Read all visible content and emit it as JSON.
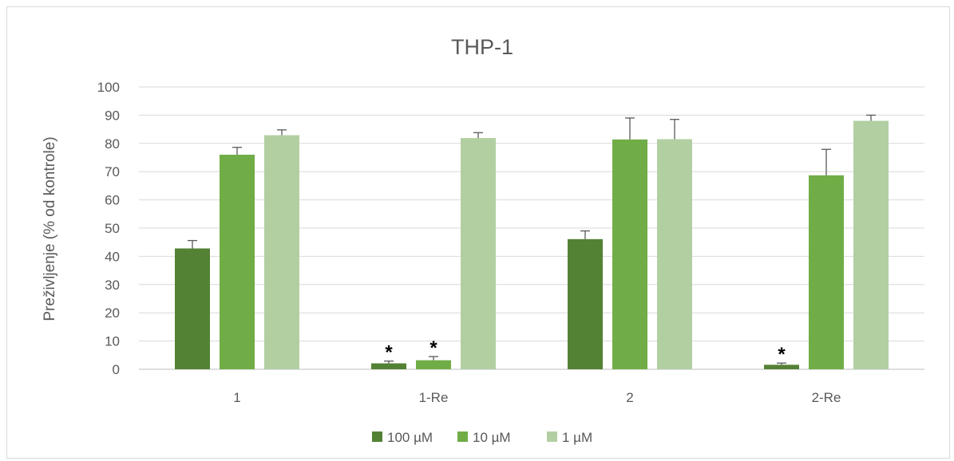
{
  "chart_data": {
    "type": "bar",
    "title": "THP-1",
    "xlabel": "",
    "ylabel": "Preživljenje (% od kontrole)",
    "ylim": [
      0,
      100
    ],
    "yticks": [
      0,
      10,
      20,
      30,
      40,
      50,
      60,
      70,
      80,
      90,
      100
    ],
    "categories": [
      "1",
      "1-Re",
      "2",
      "2-Re"
    ],
    "grid": true,
    "legend_position": "bottom",
    "series": [
      {
        "name": "100 µM",
        "color": "#548235",
        "values": [
          42.8,
          2.1,
          46.1,
          1.6
        ],
        "errors": [
          2.8,
          0.8,
          2.9,
          0.6
        ],
        "significant": [
          false,
          true,
          false,
          true
        ]
      },
      {
        "name": "10 µM",
        "color": "#70ad47",
        "values": [
          76.0,
          3.2,
          81.4,
          68.7
        ],
        "errors": [
          2.6,
          1.3,
          7.6,
          9.2
        ],
        "significant": [
          false,
          true,
          false,
          false
        ]
      },
      {
        "name": "1 µM",
        "color": "#b2cfa2",
        "values": [
          82.9,
          81.9,
          81.5,
          88.0
        ],
        "errors": [
          1.9,
          1.9,
          7.0,
          2.0
        ],
        "significant": [
          false,
          false,
          false,
          false
        ]
      }
    ],
    "significance_marker": "*"
  }
}
